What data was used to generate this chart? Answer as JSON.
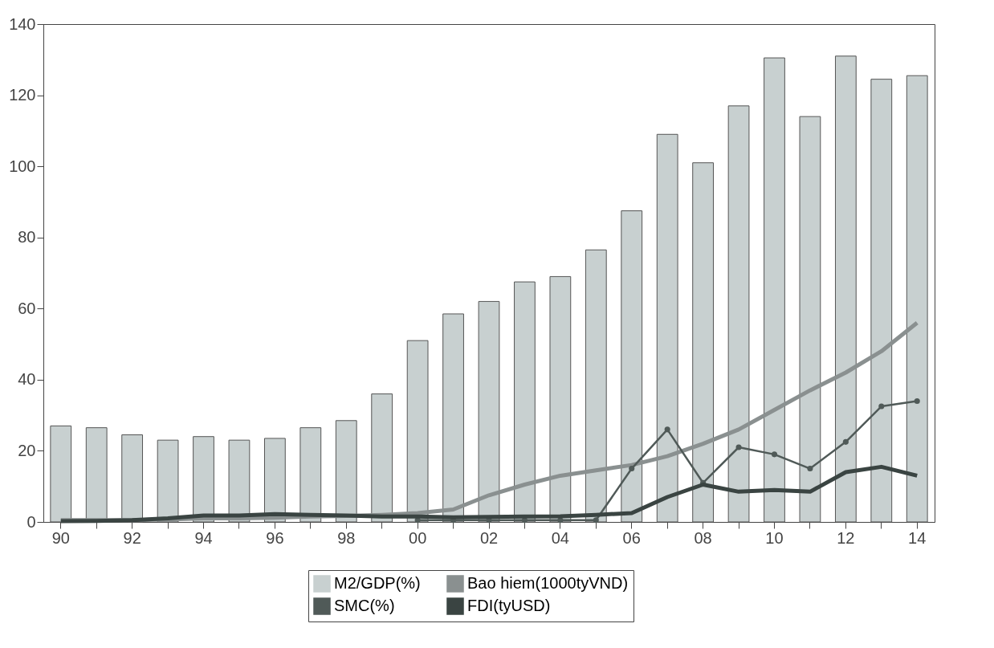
{
  "chart_data": {
    "type": "bar",
    "categories": [
      "90",
      null,
      "92",
      null,
      "94",
      null,
      "96",
      null,
      "98",
      null,
      "00",
      null,
      "02",
      null,
      "04",
      null,
      "06",
      null,
      "08",
      null,
      "10",
      null,
      "12",
      null,
      "14"
    ],
    "series": [
      {
        "name": "M2/GDP(%)",
        "color": "#c8d0d0",
        "values": [
          27,
          26.5,
          24.5,
          23,
          24,
          23,
          23.5,
          26.5,
          28.5,
          36,
          51,
          58.5,
          62,
          67.5,
          69,
          76.5,
          87.5,
          109,
          101,
          117,
          130.5,
          114,
          131,
          124.5,
          125.5
        ]
      },
      {
        "name": "Bao hiem(1000tyVND)",
        "type": "line",
        "color": "#8a9090",
        "marker": "none",
        "values": [
          0.5,
          0.5,
          0.5,
          0.7,
          1,
          1,
          1.2,
          1.5,
          1.7,
          2,
          2.5,
          3.5,
          7.5,
          10.5,
          13,
          14.5,
          16,
          18.5,
          22,
          26,
          31.5,
          37,
          42,
          48,
          56
        ]
      },
      {
        "name": "SMC(%)",
        "type": "line",
        "color": "#505a58",
        "marker": "circle",
        "values": [
          null,
          null,
          null,
          null,
          null,
          null,
          null,
          null,
          null,
          null,
          0.5,
          0.5,
          0.5,
          0.5,
          0.5,
          0.5,
          15,
          26,
          11,
          21,
          19,
          15,
          22.5,
          32.5,
          34
        ]
      },
      {
        "name": "FDI(tyUSD)",
        "type": "line",
        "color": "#3a4442",
        "marker": "none",
        "values": [
          0.2,
          0.3,
          0.5,
          1,
          1.8,
          1.8,
          2.2,
          2,
          1.8,
          1.5,
          1.5,
          1.3,
          1.4,
          1.5,
          1.6,
          2,
          2.5,
          7,
          10.5,
          8.5,
          9,
          8.5,
          14,
          15.5,
          13
        ]
      }
    ],
    "ylim": [
      0,
      140
    ],
    "yticks": [
      0,
      20,
      40,
      60,
      80,
      100,
      120,
      140
    ],
    "grid": false,
    "legend": "bottom"
  }
}
